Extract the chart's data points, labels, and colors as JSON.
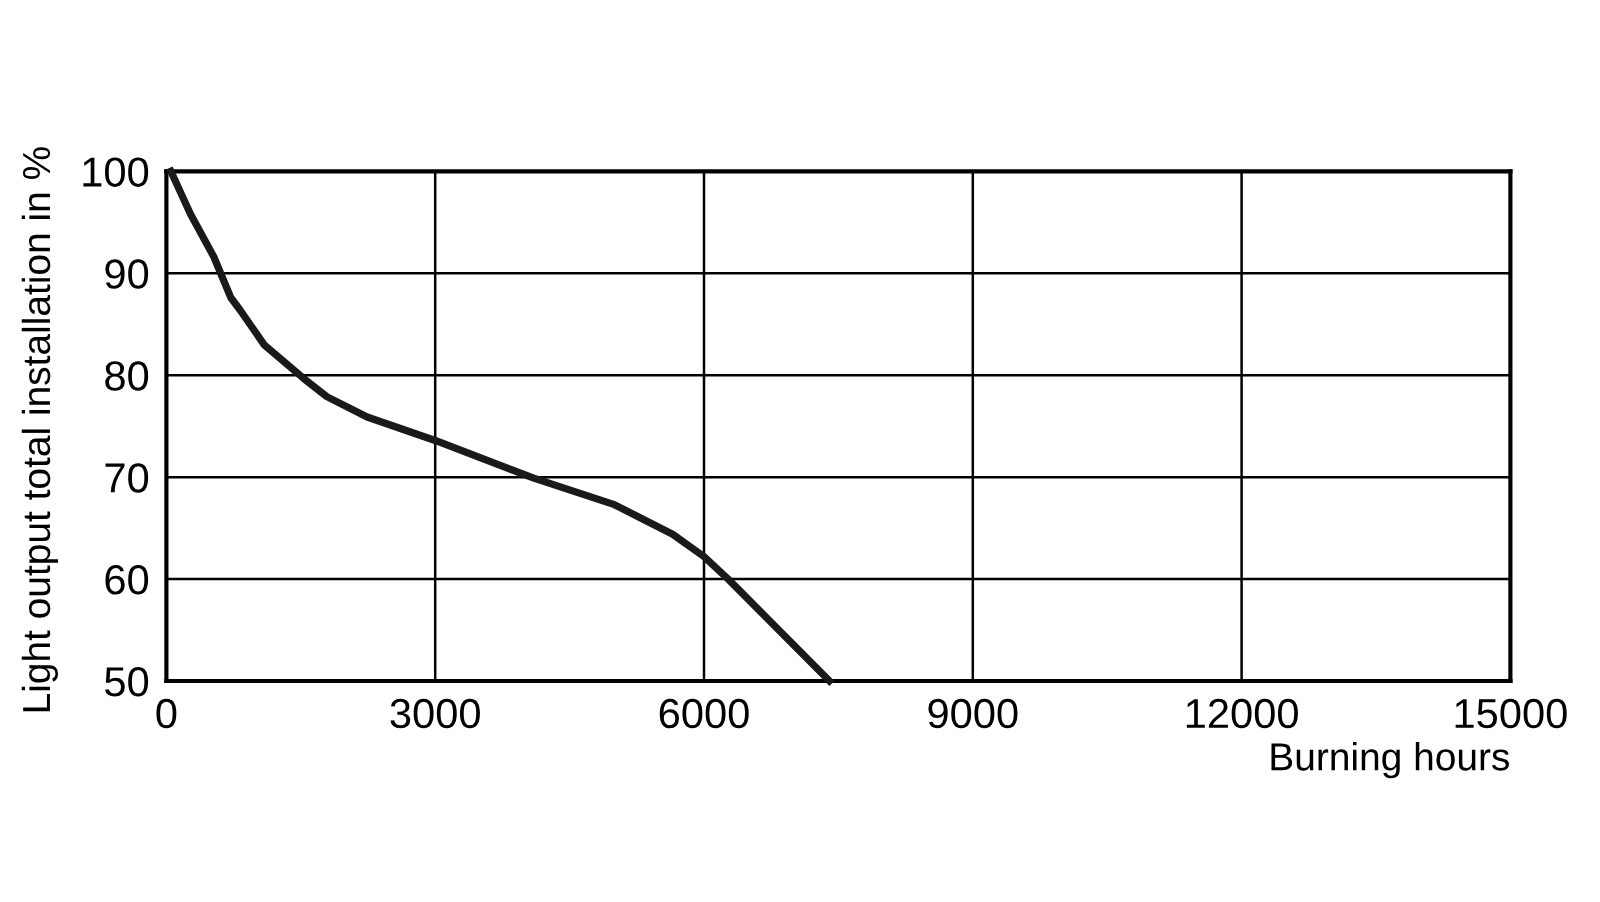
{
  "chart_data": {
    "type": "line",
    "xlabel": "Burning hours",
    "ylabel": "Light output total installation in %",
    "x": [
      50,
      270,
      530,
      720,
      830,
      1090,
      1530,
      1790,
      2240,
      3000,
      4100,
      5000,
      5650,
      6000,
      6270,
      7400
    ],
    "series": [
      {
        "color": "#1a1a1a",
        "values": [
          100,
          95.8,
          91.6,
          87.6,
          86.3,
          83,
          79.7,
          77.9,
          75.9,
          73.6,
          69.9,
          67.3,
          64.4,
          62.2,
          60,
          50
        ]
      }
    ],
    "xlim": [
      0,
      15000
    ],
    "xticks": [
      0,
      3000,
      6000,
      9000,
      12000,
      15000
    ],
    "ylim": [
      50,
      100
    ],
    "yticks": [
      50,
      60,
      70,
      80,
      90,
      100
    ],
    "grid": true,
    "marker": "none",
    "line_style": "solid"
  }
}
